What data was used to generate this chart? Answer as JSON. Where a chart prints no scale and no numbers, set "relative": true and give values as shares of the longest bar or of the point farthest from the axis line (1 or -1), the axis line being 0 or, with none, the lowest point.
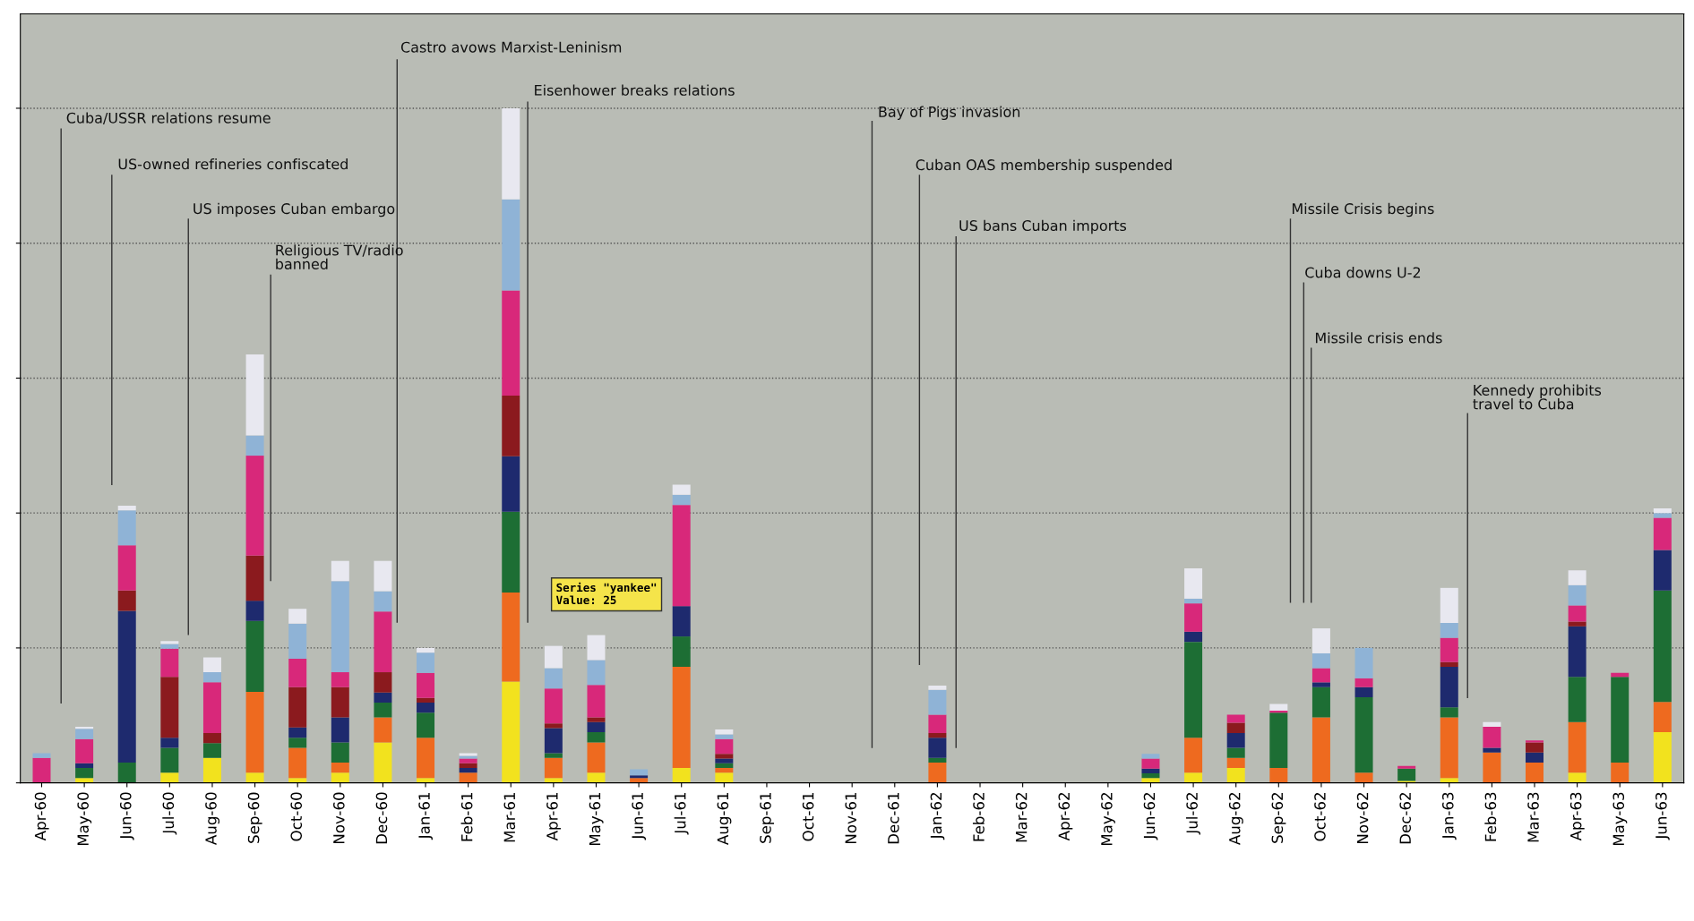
{
  "chart_data": {
    "type": "bar",
    "stacked": true,
    "relative": true,
    "grid": "y",
    "categories": [
      "Apr-60",
      "May-60",
      "Jun-60",
      "Jul-60",
      "Aug-60",
      "Sep-60",
      "Oct-60",
      "Nov-60",
      "Dec-60",
      "Jan-61",
      "Feb-61",
      "Mar-61",
      "Apr-61",
      "May-61",
      "Jun-61",
      "Jul-61",
      "Aug-61",
      "Sep-61",
      "Oct-61",
      "Nov-61",
      "Dec-61",
      "Jan-62",
      "Feb-62",
      "Mar-62",
      "Apr-62",
      "May-62",
      "Jun-62",
      "Jul-62",
      "Aug-62",
      "Sep-62",
      "Oct-62",
      "Nov-62",
      "Dec-62",
      "Jan-63",
      "Feb-63",
      "Mar-63",
      "Apr-63",
      "May-63",
      "Jun-63"
    ],
    "series": [
      {
        "color": "#f2e21e",
        "values": [
          0,
          0.007,
          0,
          0.015,
          0.037,
          0.015,
          0.007,
          0.015,
          0.06,
          0.007,
          0,
          0.15,
          0.007,
          0.015,
          0,
          0.022,
          0.015,
          0,
          0,
          0,
          0,
          0,
          0,
          0,
          0,
          0,
          0.007,
          0.015,
          0.022,
          0,
          0,
          0,
          0.003,
          0.007,
          0,
          0,
          0.015,
          0,
          0.075
        ]
      },
      {
        "color": "#ee6a1f",
        "values": [
          0,
          0,
          0,
          0,
          0,
          0.12,
          0.045,
          0.015,
          0.037,
          0.06,
          0.015,
          0.132,
          0.03,
          0.045,
          0.007,
          0.15,
          0.007,
          0,
          0,
          0,
          0,
          0.03,
          0,
          0,
          0,
          0,
          0,
          0.052,
          0.015,
          0.022,
          0.097,
          0.015,
          0,
          0.09,
          0.045,
          0.03,
          0.075,
          0.03,
          0.045
        ]
      },
      {
        "color": "#1d6e34",
        "values": [
          0,
          0.015,
          0.03,
          0.037,
          0.022,
          0.105,
          0.015,
          0.03,
          0.022,
          0.037,
          0,
          0.12,
          0.007,
          0.015,
          0,
          0.045,
          0.007,
          0,
          0,
          0,
          0,
          0.007,
          0,
          0,
          0,
          0,
          0.007,
          0.142,
          0.015,
          0.082,
          0.045,
          0.112,
          0.018,
          0.015,
          0,
          0,
          0.067,
          0.127,
          0.165
        ]
      },
      {
        "color": "#1e2a6e",
        "values": [
          0,
          0.007,
          0.225,
          0.015,
          0,
          0.03,
          0.015,
          0.037,
          0.015,
          0.015,
          0.007,
          0.082,
          0.037,
          0.015,
          0.004,
          0.045,
          0.007,
          0,
          0,
          0,
          0,
          0.03,
          0,
          0,
          0,
          0,
          0.007,
          0.015,
          0.022,
          0,
          0.007,
          0.015,
          0,
          0.06,
          0.007,
          0.015,
          0.075,
          0,
          0.06
        ]
      },
      {
        "color": "#8b1a1e",
        "values": [
          0,
          0,
          0.03,
          0.09,
          0.015,
          0.067,
          0.06,
          0.045,
          0.03,
          0.007,
          0.007,
          0.09,
          0.007,
          0.007,
          0,
          0,
          0.007,
          0,
          0,
          0,
          0,
          0.007,
          0,
          0,
          0,
          0,
          0,
          0,
          0.015,
          0,
          0,
          0,
          0,
          0.007,
          0,
          0.015,
          0.007,
          0,
          0
        ]
      },
      {
        "color": "#d8287a",
        "values": [
          0.037,
          0.036,
          0.067,
          0.042,
          0.075,
          0.148,
          0.042,
          0.022,
          0.09,
          0.037,
          0.007,
          0.156,
          0.052,
          0.048,
          0,
          0.15,
          0.022,
          0,
          0,
          0,
          0,
          0.027,
          0,
          0,
          0,
          0,
          0.015,
          0.042,
          0.012,
          0.003,
          0.021,
          0.013,
          0.004,
          0.036,
          0.031,
          0.003,
          0.024,
          0.006,
          0.048
        ]
      },
      {
        "color": "#8fb3d6",
        "values": [
          0.007,
          0.015,
          0.052,
          0.007,
          0.015,
          0.03,
          0.052,
          0.135,
          0.03,
          0.03,
          0.004,
          0.135,
          0.03,
          0.037,
          0.009,
          0.015,
          0.007,
          0,
          0,
          0,
          0,
          0.037,
          0,
          0,
          0,
          0,
          0.007,
          0.007,
          0,
          0,
          0.022,
          0.045,
          0,
          0.022,
          0,
          0,
          0.03,
          0,
          0.007
        ]
      },
      {
        "color": "#e8e8f0",
        "values": [
          0,
          0.003,
          0.007,
          0.004,
          0.022,
          0.12,
          0.022,
          0.03,
          0.045,
          0.007,
          0.004,
          0.135,
          0.033,
          0.037,
          0,
          0.015,
          0.007,
          0,
          0,
          0,
          0,
          0.006,
          0,
          0,
          0,
          0,
          0,
          0.045,
          0,
          0.01,
          0.037,
          0,
          0,
          0.052,
          0.007,
          0,
          0.022,
          0,
          0.007
        ]
      }
    ],
    "annotations": [
      "Cuba/USSR relations resume",
      "US-owned refineries confiscated",
      "US imposes Cuban embargo",
      "Religious TV/radio\nbanned",
      "Castro avows Marxist-Leninism",
      "Eisenhower breaks relations",
      "Bay of Pigs invasion",
      "Cuban OAS membership suspended",
      "US bans Cuban imports",
      "Missile Crisis begins",
      "Cuba downs U-2",
      "Missile crisis ends",
      "Kennedy prohibits\ntravel to Cuba",
      "Series \"yankee\"\nValue: 25"
    ]
  }
}
